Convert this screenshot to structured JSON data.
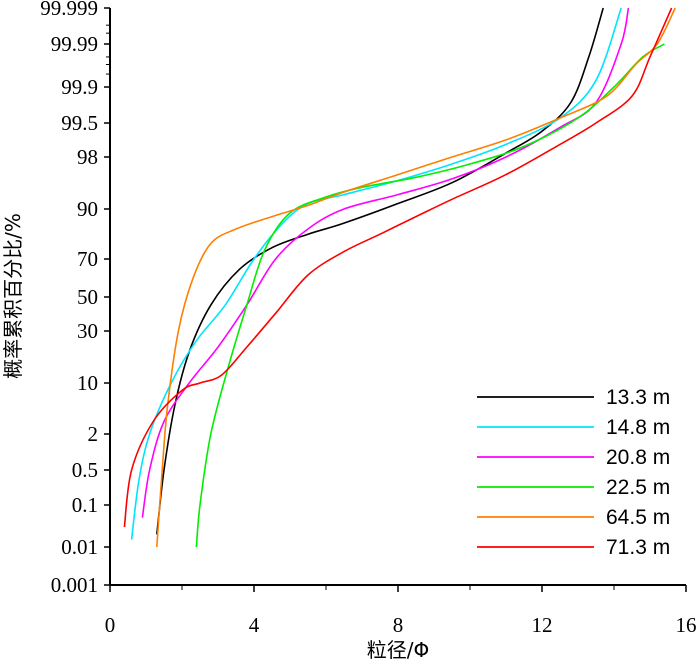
{
  "chart_data": {
    "type": "line",
    "title": "",
    "xlabel": "粒径/Φ",
    "ylabel": "概率累积百分比/%",
    "xlim": [
      0,
      16
    ],
    "x_ticks": [
      "0",
      "4",
      "8",
      "12",
      "16"
    ],
    "y_scale": "probability",
    "y_ticks": [
      "0.001",
      "0.01",
      "0.1",
      "0.5",
      "2",
      "10",
      "30",
      "50",
      "70",
      "90",
      "98",
      "99.5",
      "99.9",
      "99.99",
      "99.999"
    ],
    "grid": false,
    "legend_position": "bottom-right",
    "series": [
      {
        "name": "13.3 m",
        "color": "#000000",
        "points": [
          [
            1.3,
            0.02
          ],
          [
            1.5,
            0.5
          ],
          [
            1.8,
            5
          ],
          [
            2.2,
            20
          ],
          [
            2.8,
            45
          ],
          [
            3.6,
            65
          ],
          [
            4.5,
            76
          ],
          [
            5.5,
            82
          ],
          [
            6.5,
            86
          ],
          [
            8.0,
            91.5
          ],
          [
            9.5,
            95.5
          ],
          [
            11.0,
            98.3
          ],
          [
            12.0,
            99.3
          ],
          [
            12.8,
            99.8
          ],
          [
            13.3,
            99.98
          ],
          [
            13.7,
            99.999
          ]
        ]
      },
      {
        "name": "14.8 m",
        "color": "#00e5ff",
        "points": [
          [
            0.6,
            0.015
          ],
          [
            0.8,
            0.3
          ],
          [
            1.1,
            2
          ],
          [
            1.7,
            10
          ],
          [
            2.4,
            25
          ],
          [
            3.2,
            45
          ],
          [
            4.0,
            70
          ],
          [
            4.8,
            86
          ],
          [
            5.5,
            91.5
          ],
          [
            6.5,
            93.5
          ],
          [
            8.0,
            95.8
          ],
          [
            9.5,
            97.5
          ],
          [
            11.0,
            98.8
          ],
          [
            12.5,
            99.6
          ],
          [
            13.5,
            99.93
          ],
          [
            14.2,
            99.999
          ]
        ]
      },
      {
        "name": "20.8 m",
        "color": "#ff00ff",
        "points": [
          [
            0.9,
            0.05
          ],
          [
            1.1,
            0.5
          ],
          [
            1.5,
            3
          ],
          [
            2.2,
            10
          ],
          [
            3.0,
            22
          ],
          [
            3.8,
            45
          ],
          [
            4.6,
            70
          ],
          [
            5.5,
            84
          ],
          [
            6.5,
            90
          ],
          [
            8.0,
            93.5
          ],
          [
            9.5,
            96
          ],
          [
            11.0,
            98
          ],
          [
            12.5,
            99.4
          ],
          [
            13.5,
            99.8
          ],
          [
            14.2,
            99.99
          ],
          [
            14.4,
            99.999
          ]
        ]
      },
      {
        "name": "22.5 m",
        "color": "#00ee00",
        "points": [
          [
            2.4,
            0.01
          ],
          [
            2.5,
            0.1
          ],
          [
            2.8,
            2
          ],
          [
            3.3,
            15
          ],
          [
            3.8,
            45
          ],
          [
            4.3,
            75
          ],
          [
            5.0,
            89
          ],
          [
            6.0,
            93
          ],
          [
            7.0,
            94.8
          ],
          [
            8.5,
            96.2
          ],
          [
            10.0,
            97.5
          ],
          [
            11.5,
            98.7
          ],
          [
            13.0,
            99.6
          ],
          [
            14.0,
            99.9
          ],
          [
            14.8,
            99.98
          ],
          [
            15.4,
            99.99
          ]
        ]
      },
      {
        "name": "64.5 m",
        "color": "#ff7f00",
        "points": [
          [
            1.3,
            0.01
          ],
          [
            1.45,
            0.5
          ],
          [
            1.6,
            5
          ],
          [
            1.9,
            30
          ],
          [
            2.3,
            60
          ],
          [
            2.8,
            78
          ],
          [
            3.5,
            84
          ],
          [
            4.5,
            88
          ],
          [
            5.5,
            91
          ],
          [
            6.5,
            94
          ],
          [
            8.0,
            96.5
          ],
          [
            9.5,
            98
          ],
          [
            11.0,
            99
          ],
          [
            12.5,
            99.6
          ],
          [
            13.8,
            99.85
          ],
          [
            14.6,
            99.97
          ],
          [
            15.2,
            99.99
          ],
          [
            15.7,
            99.999
          ]
        ]
      },
      {
        "name": "71.3 m",
        "color": "#ff0000",
        "points": [
          [
            0.4,
            0.03
          ],
          [
            0.6,
            0.5
          ],
          [
            1.2,
            3
          ],
          [
            2.0,
            8
          ],
          [
            2.5,
            10
          ],
          [
            3.1,
            12
          ],
          [
            3.8,
            22
          ],
          [
            4.6,
            40
          ],
          [
            5.5,
            62
          ],
          [
            6.5,
            74
          ],
          [
            7.5,
            82
          ],
          [
            8.5,
            88
          ],
          [
            9.5,
            92.5
          ],
          [
            11.0,
            96.5
          ],
          [
            12.5,
            98.8
          ],
          [
            13.5,
            99.5
          ],
          [
            14.5,
            99.85
          ],
          [
            15.0,
            99.98
          ],
          [
            15.6,
            99.999
          ]
        ]
      }
    ]
  }
}
